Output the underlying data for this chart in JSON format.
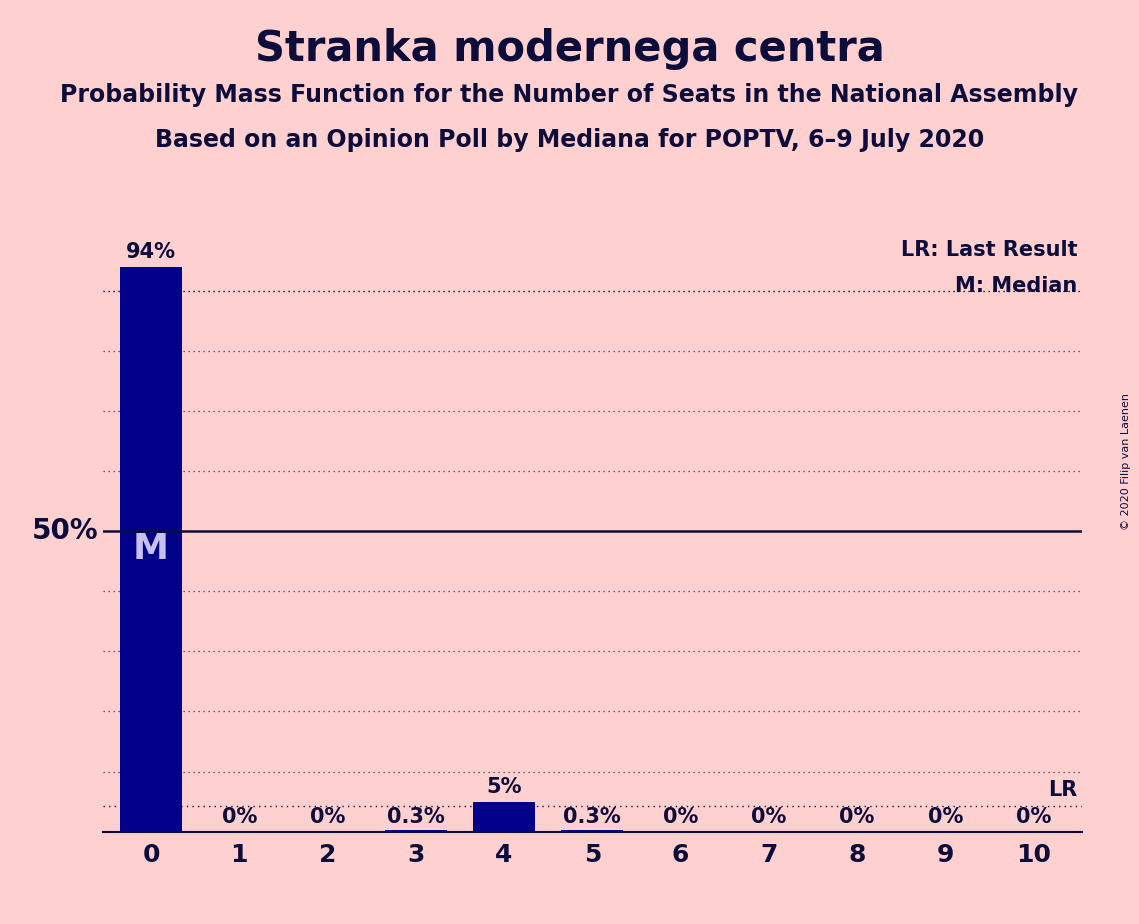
{
  "title": "Stranka modernega centra",
  "subtitle1": "Probability Mass Function for the Number of Seats in the National Assembly",
  "subtitle2": "Based on an Opinion Poll by Mediana for POPTV, 6–9 July 2020",
  "copyright": "© 2020 Filip van Laenen",
  "categories": [
    0,
    1,
    2,
    3,
    4,
    5,
    6,
    7,
    8,
    9,
    10
  ],
  "values": [
    0.94,
    0.0,
    0.0,
    0.003,
    0.05,
    0.003,
    0.0,
    0.0,
    0.0,
    0.0,
    0.0
  ],
  "bar_labels": [
    "94%",
    "0%",
    "0%",
    "0.3%",
    "5%",
    "0.3%",
    "0%",
    "0%",
    "0%",
    "0%",
    "0%"
  ],
  "bar_color": "#00008B",
  "background_color": "#FFD0D0",
  "text_color": "#0D0D3B",
  "ylim": [
    0,
    1.0
  ],
  "ylabel_50": "50%",
  "median_line": 0.5,
  "lr_line": 0.042,
  "median_label": "M",
  "lr_label": "LR",
  "legend_lr": "LR: Last Result",
  "legend_m": "M: Median",
  "title_fontsize": 30,
  "subtitle_fontsize": 17,
  "bar_label_fontsize": 15,
  "axis_tick_fontsize": 18,
  "ylabel_fontsize": 20,
  "median_label_fontsize": 26,
  "copyright_fontsize": 8
}
